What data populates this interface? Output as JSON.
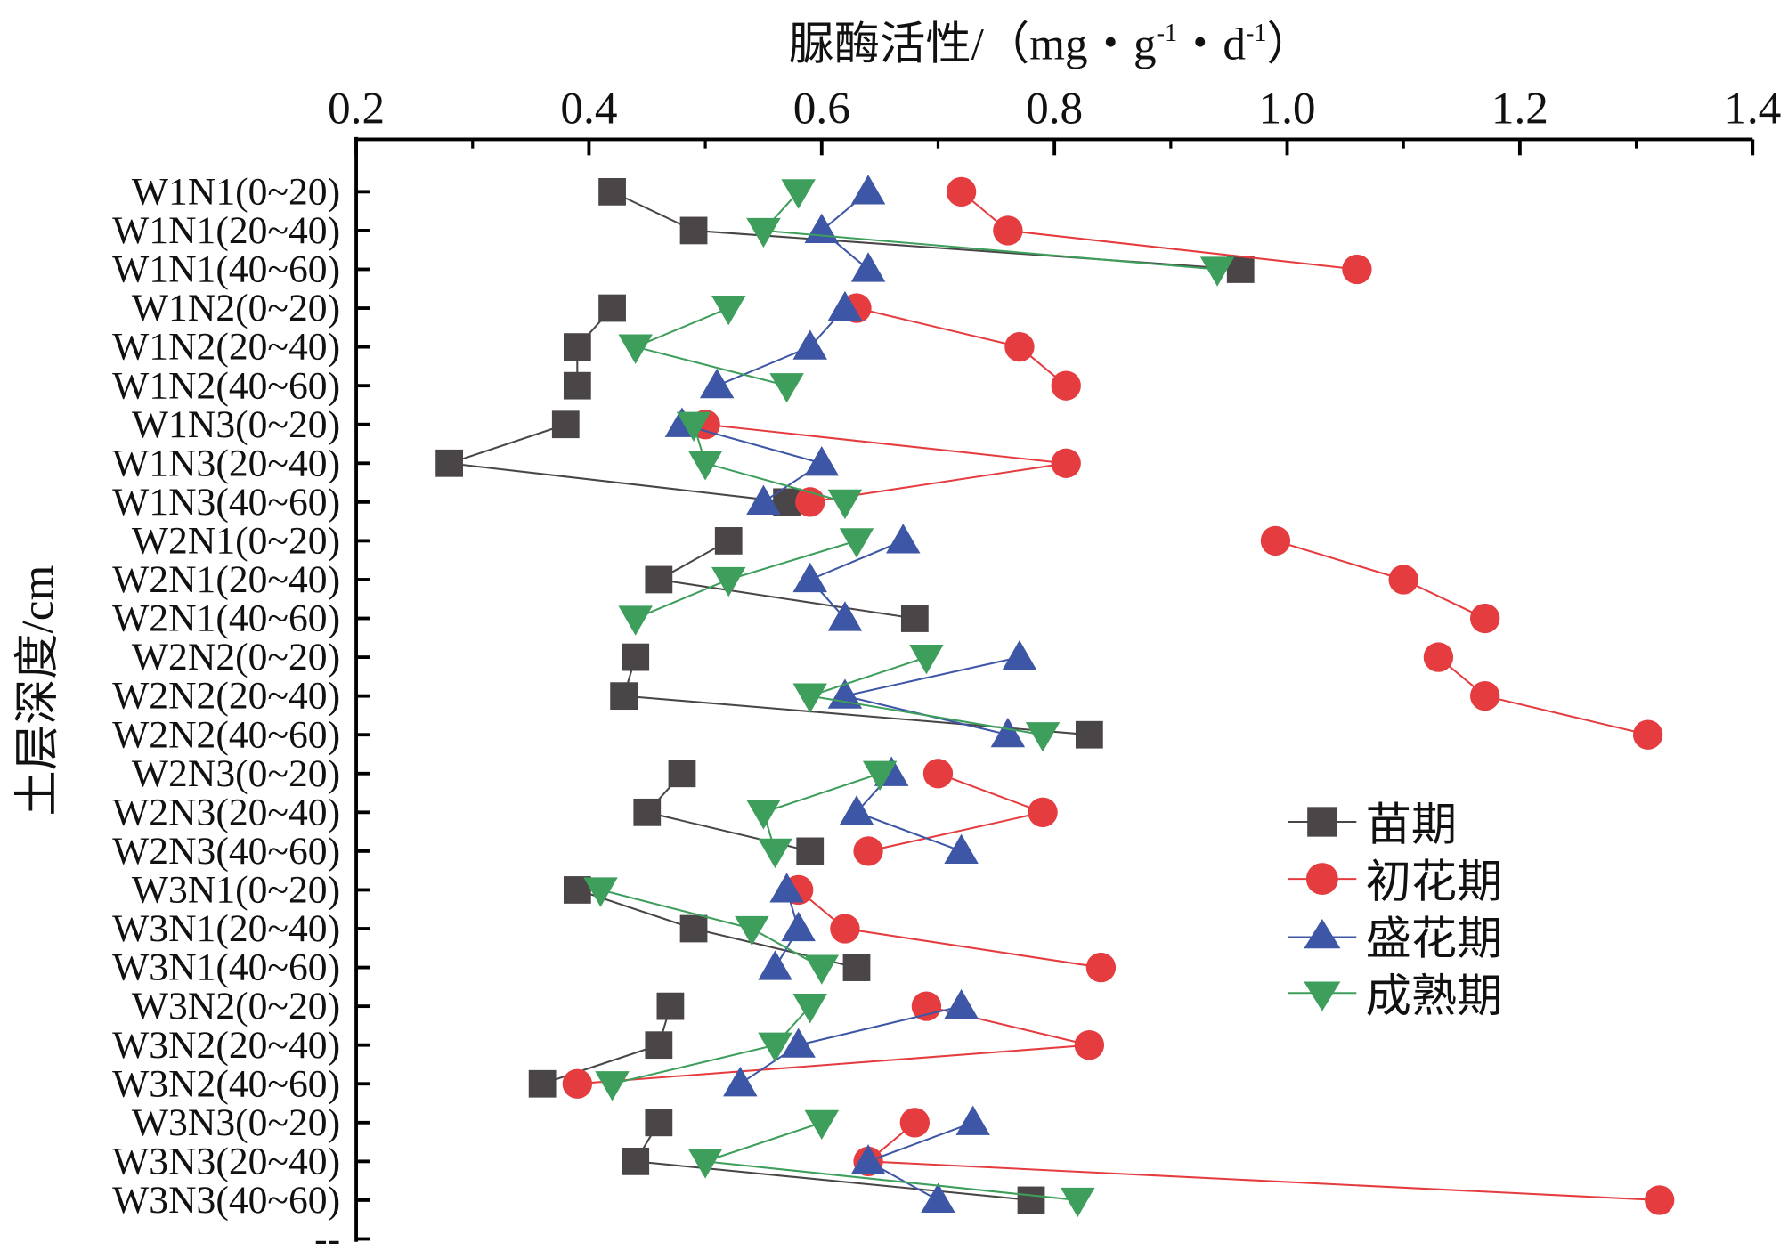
{
  "chart_data": {
    "type": "line",
    "title": "脲酶活性/（mg・g-1・d-1）",
    "title_parts": {
      "prefix": "脲酶活性/（mg・g",
      "sup1": "-1",
      "mid": "・d",
      "sup2": "-1",
      "suffix": "）"
    },
    "xlabel": "脲酶活性/（mg・g-1・d-1）",
    "ylabel": "土层深度/cm",
    "xlim": [
      0.2,
      1.4
    ],
    "xticks": [
      "0.2",
      "0.4",
      "0.6",
      "0.8",
      "1.0",
      "1.2",
      "1.4"
    ],
    "x_axis_position": "top",
    "categories": [
      "W1N1(0~20)",
      "W1N1(20~40)",
      "W1N1(40~60)",
      "W1N2(0~20)",
      "W1N2(20~40)",
      "W1N2(40~60)",
      "W1N3(0~20)",
      "W1N3(20~40)",
      "W1N3(40~60)",
      "W2N1(0~20)",
      "W2N1(20~40)",
      "W2N1(40~60)",
      "W2N2(0~20)",
      "W2N2(20~40)",
      "W2N2(40~60)",
      "W2N3(0~20)",
      "W2N3(20~40)",
      "W2N3(40~60)",
      "W3N1(0~20)",
      "W3N1(20~40)",
      "W3N1(40~60)",
      "W3N2(0~20)",
      "W3N2(20~40)",
      "W3N2(40~60)",
      "W3N3(0~20)",
      "W3N3(20~40)",
      "W3N3(40~60)"
    ],
    "extra_category_label": "--",
    "group_size": 3,
    "series": [
      {
        "name": "苗期",
        "color": "#4a4546",
        "marker": "square",
        "values": [
          0.42,
          0.49,
          0.96,
          0.42,
          0.39,
          0.39,
          0.38,
          0.28,
          0.57,
          0.52,
          0.46,
          0.68,
          0.44,
          0.43,
          0.83,
          0.48,
          0.45,
          0.59,
          0.39,
          0.49,
          0.63,
          0.47,
          0.46,
          0.36,
          0.46,
          0.44,
          0.78
        ]
      },
      {
        "name": "初花期",
        "color": "#e53c40",
        "marker": "circle",
        "values": [
          0.72,
          0.76,
          1.06,
          0.63,
          0.77,
          0.81,
          0.5,
          0.81,
          0.59,
          0.99,
          1.1,
          1.17,
          1.13,
          1.17,
          1.31,
          0.7,
          0.79,
          0.64,
          0.58,
          0.62,
          0.84,
          0.69,
          0.83,
          0.39,
          0.68,
          0.64,
          1.32
        ]
      },
      {
        "name": "盛花期",
        "color": "#3d56a5",
        "marker": "triangle-up",
        "values": [
          0.64,
          0.6,
          0.64,
          0.62,
          0.59,
          0.51,
          0.48,
          0.6,
          0.55,
          0.67,
          0.59,
          0.62,
          0.77,
          0.62,
          0.76,
          0.66,
          0.63,
          0.72,
          0.57,
          0.58,
          0.56,
          0.72,
          0.58,
          0.53,
          0.73,
          0.64,
          0.7
        ]
      },
      {
        "name": "成熟期",
        "color": "#3e9e5c",
        "marker": "triangle-down",
        "values": [
          0.58,
          0.55,
          0.94,
          0.52,
          0.44,
          0.57,
          0.49,
          0.5,
          0.62,
          0.63,
          0.52,
          0.44,
          0.69,
          0.59,
          0.79,
          0.65,
          0.55,
          0.56,
          0.41,
          0.54,
          0.6,
          0.59,
          0.56,
          0.42,
          0.6,
          0.5,
          0.82
        ]
      }
    ],
    "legend_position": "right-bottom"
  }
}
